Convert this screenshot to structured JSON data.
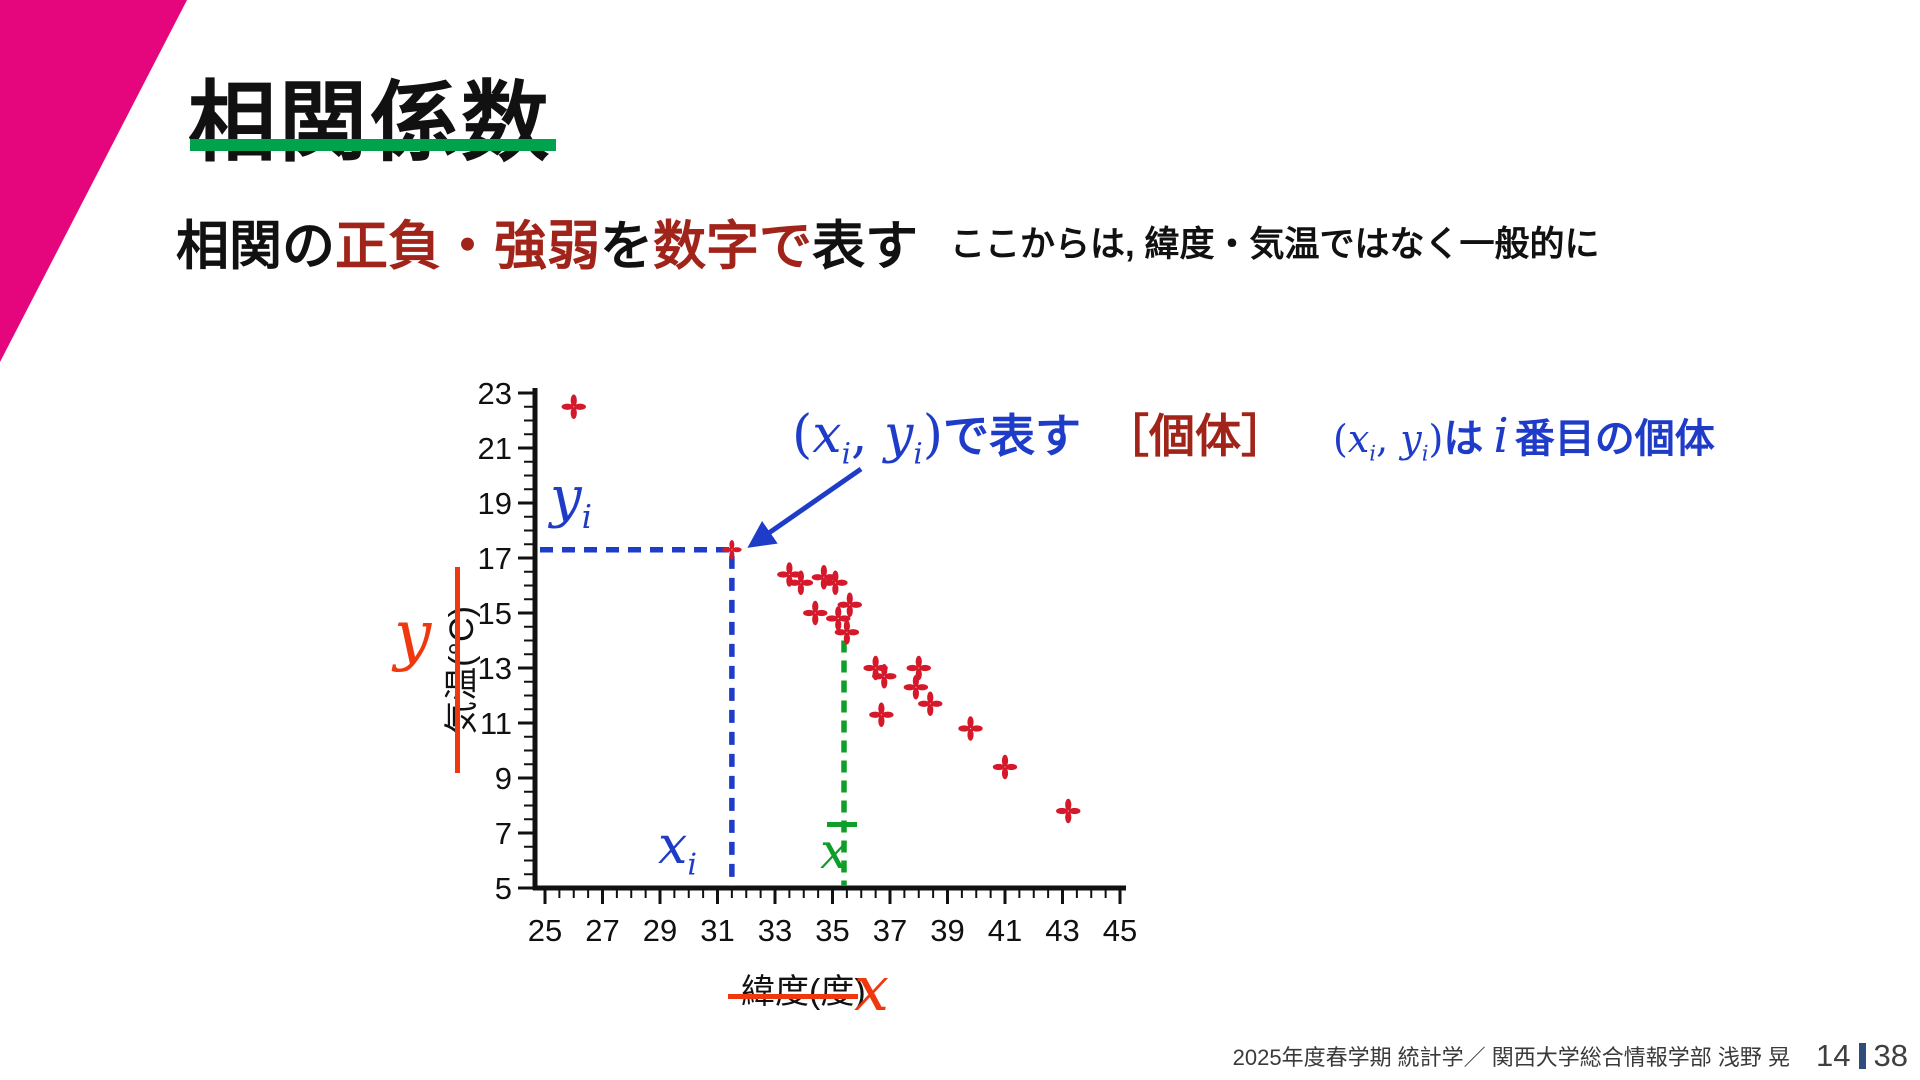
{
  "theme": {
    "accent_pink": "#e5067e",
    "title_green": "#00a24e",
    "dark_red": "#a1241a",
    "blue": "#1e3cc8",
    "chart_green": "#0f9e28",
    "vermilion": "#f0380f",
    "page_navy": "#2e4d7b"
  },
  "slide": {
    "title": "相関係数",
    "subtitle_segments": [
      {
        "text": "相関の"
      },
      {
        "text": "正負・強弱"
      },
      {
        "text": "を"
      },
      {
        "text": "数字で"
      },
      {
        "text": "表す"
      }
    ],
    "side_note": "ここからは, 緯度・気温ではなく一般的に",
    "footer": {
      "course": "2025年度春学期  統計学／ 関西大学総合情報学部 浅野 晃",
      "page": "14",
      "total_pages": "38"
    }
  },
  "callout": {
    "open": "(",
    "close": ")",
    "comma": ", ",
    "x": "x",
    "y": "y",
    "sub": "i",
    "arawasu": "で表す",
    "kotai": "［個体］",
    "wa": "は",
    "i_var": "i",
    "banme": "番目の個体"
  },
  "chart_labels": {
    "x_var": "x",
    "y_var": "y",
    "point_x_base": "x",
    "point_y_base": "y",
    "sub": "i",
    "mean_base": "x"
  },
  "chart_data": {
    "type": "scatter",
    "title": "",
    "xlabel": "緯度(度)",
    "ylabel": "気温(°C)",
    "xlim": [
      25,
      45
    ],
    "ylim": [
      5,
      23
    ],
    "x_ticks": [
      25,
      27,
      29,
      31,
      33,
      35,
      37,
      39,
      41,
      43,
      45
    ],
    "y_ticks": [
      5,
      7,
      9,
      11,
      13,
      15,
      17,
      19,
      21,
      23
    ],
    "tick_minor_step": 0.5,
    "grid": false,
    "marker_color": "#d6182b",
    "points": [
      [
        26.0,
        22.5
      ],
      [
        33.5,
        16.4
      ],
      [
        33.9,
        16.1
      ],
      [
        34.7,
        16.3
      ],
      [
        35.1,
        16.1
      ],
      [
        34.4,
        15.0
      ],
      [
        35.2,
        14.8
      ],
      [
        35.6,
        15.3
      ],
      [
        35.5,
        14.3
      ],
      [
        36.5,
        13.0
      ],
      [
        36.8,
        12.7
      ],
      [
        36.7,
        11.3
      ],
      [
        38.0,
        13.0
      ],
      [
        37.9,
        12.3
      ],
      [
        38.4,
        11.7
      ],
      [
        39.8,
        10.8
      ],
      [
        41.0,
        9.4
      ],
      [
        43.2,
        7.8
      ]
    ],
    "highlight_point": {
      "x": 31.5,
      "y": 17.3
    },
    "mean_line": {
      "x": 35.4,
      "y_top": 14.0
    }
  }
}
